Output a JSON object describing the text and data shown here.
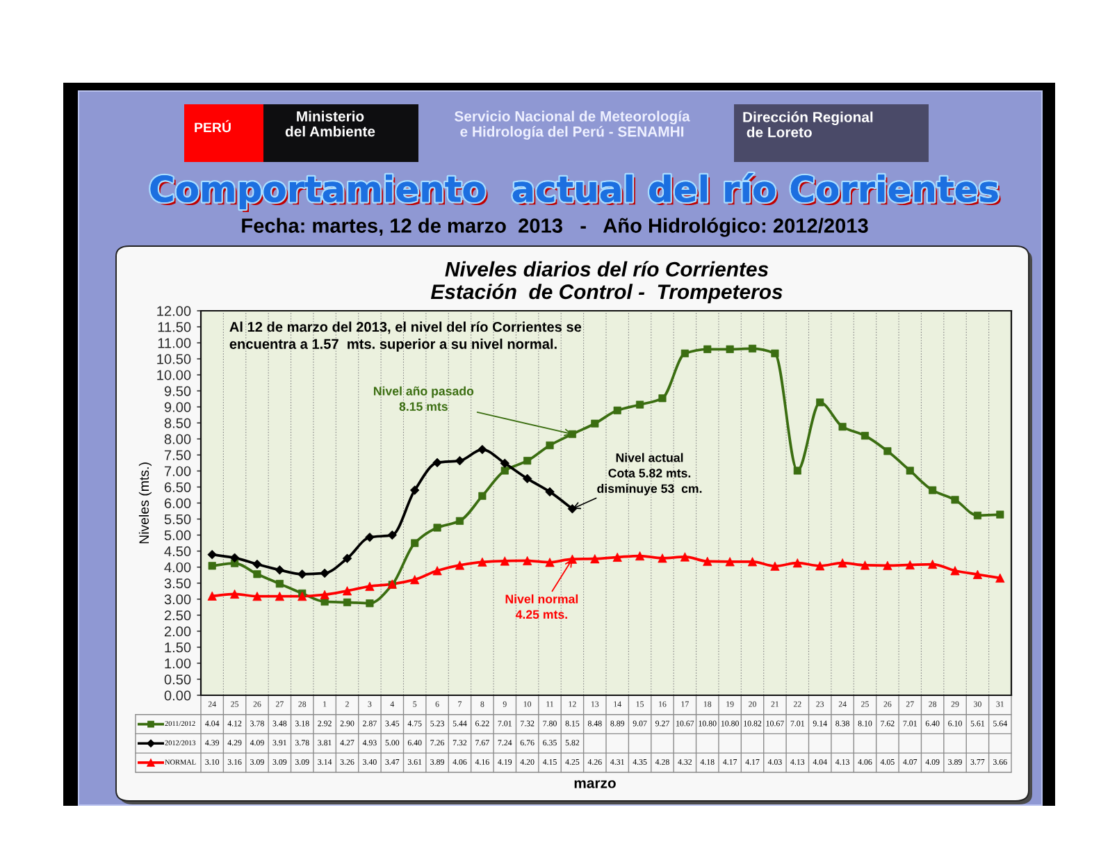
{
  "chart_data": {
    "type": "line",
    "title": "Comportamiento  actual del río Corrientes",
    "subtitle": "Fecha: martes, 12 de marzo  2013   -   Año Hidrológico: 2012/2013",
    "ylabel": "Niveles (mts.)",
    "categories": [
      "24",
      "25",
      "26",
      "27",
      "28",
      "1",
      "2",
      "3",
      "4",
      "5",
      "6",
      "7",
      "8",
      "9",
      "10",
      "11",
      "12",
      "13",
      "14",
      "15",
      "16",
      "17",
      "18",
      "19",
      "20",
      "21",
      "22",
      "23",
      "24",
      "25",
      "26",
      "27",
      "28",
      "29",
      "30",
      "31"
    ],
    "series": [
      {
        "name": "2011/2012",
        "color": "#3b6e11",
        "marker": "square",
        "values": [
          4.04,
          4.12,
          3.78,
          3.48,
          3.18,
          2.92,
          2.9,
          2.87,
          3.45,
          4.75,
          5.23,
          5.44,
          6.22,
          7.01,
          7.32,
          7.8,
          8.15,
          8.48,
          8.89,
          9.07,
          9.27,
          10.67,
          10.8,
          10.8,
          10.82,
          10.67,
          7.01,
          9.14,
          8.38,
          8.1,
          7.62,
          7.01,
          6.4,
          6.1,
          5.61,
          5.64
        ],
        "value_labels": [
          "4.04",
          "4.12",
          "3.78",
          "3.48",
          "3.18",
          "2.92",
          "2.90",
          "2.87",
          "3.45",
          "4.75",
          "5.23",
          "5.44",
          "6.22",
          "7.01",
          "7.32",
          "7.80",
          "8.15",
          "8.48",
          "8.89",
          "9.07",
          "9.27",
          "10.67",
          "10.80",
          "10.80",
          "10.82",
          "10.67",
          "7.01",
          "9.14",
          "8.38",
          "8.10",
          "7.62",
          "7.01",
          "6.40",
          "6.10",
          "5.61",
          "5.64"
        ]
      },
      {
        "name": "2012/2013",
        "color": "#000000",
        "marker": "diamond",
        "values": [
          4.39,
          4.29,
          4.09,
          3.91,
          3.78,
          3.81,
          4.27,
          4.93,
          5.0,
          6.4,
          7.26,
          7.32,
          7.67,
          7.24,
          6.76,
          6.35,
          5.82,
          null,
          null,
          null,
          null,
          null,
          null,
          null,
          null,
          null,
          null,
          null,
          null,
          null,
          null,
          null,
          null,
          null,
          null,
          null
        ],
        "value_labels": [
          "4.39",
          "4.29",
          "4.09",
          "3.91",
          "3.78",
          "3.81",
          "4.27",
          "4.93",
          "5.00",
          "6.40",
          "7.26",
          "7.32",
          "7.67",
          "7.24",
          "6.76",
          "6.35",
          "5.82",
          null,
          null,
          null,
          null,
          null,
          null,
          null,
          null,
          null,
          null,
          null,
          null,
          null,
          null,
          null,
          null,
          null,
          null,
          null
        ]
      },
      {
        "name": "NORMAL",
        "color": "#ff0000",
        "marker": "triangle",
        "values": [
          3.1,
          3.16,
          3.09,
          3.09,
          3.09,
          3.14,
          3.26,
          3.4,
          3.47,
          3.61,
          3.89,
          4.06,
          4.16,
          4.19,
          4.2,
          4.15,
          4.25,
          4.26,
          4.31,
          4.35,
          4.28,
          4.32,
          4.18,
          4.17,
          4.17,
          4.03,
          4.13,
          4.04,
          4.13,
          4.06,
          4.05,
          4.07,
          4.09,
          3.89,
          3.77,
          3.66
        ],
        "value_labels": [
          "3.10",
          "3.16",
          "3.09",
          "3.09",
          "3.09",
          "3.14",
          "3.26",
          "3.40",
          "3.47",
          "3.61",
          "3.89",
          "4.06",
          "4.16",
          "4.19",
          "4.20",
          "4.15",
          "4.25",
          "4.26",
          "4.31",
          "4.35",
          "4.28",
          "4.32",
          "4.18",
          "4.17",
          "4.17",
          "4.03",
          "4.13",
          "4.04",
          "4.13",
          "4.06",
          "4.05",
          "4.07",
          "4.09",
          "3.89",
          "3.77",
          "3.66"
        ]
      }
    ],
    "ylim": [
      0,
      12
    ],
    "yticks": [
      {
        "value": 0,
        "label": "0.00"
      },
      {
        "value": 0.5,
        "label": "0.50"
      },
      {
        "value": 1,
        "label": "1.00"
      },
      {
        "value": 1.5,
        "label": "1.50"
      },
      {
        "value": 2,
        "label": "2.00"
      },
      {
        "value": 2.5,
        "label": "2.50"
      },
      {
        "value": 3,
        "label": "3.00"
      },
      {
        "value": 3.5,
        "label": "3.50"
      },
      {
        "value": 4,
        "label": "4.00"
      },
      {
        "value": 4.5,
        "label": "4.50"
      },
      {
        "value": 5,
        "label": "5.00"
      },
      {
        "value": 5.5,
        "label": "5.50"
      },
      {
        "value": 6,
        "label": "6.00"
      },
      {
        "value": 6.5,
        "label": "6.50"
      },
      {
        "value": 7,
        "label": "7.00"
      },
      {
        "value": 7.5,
        "label": "7.50"
      },
      {
        "value": 8,
        "label": "8.00"
      },
      {
        "value": 8.5,
        "label": "8.50"
      },
      {
        "value": 9,
        "label": "9.00"
      },
      {
        "value": 9.5,
        "label": "9.50"
      },
      {
        "value": 10,
        "label": "10.00"
      },
      {
        "value": 10.5,
        "label": "10.50"
      },
      {
        "value": 11,
        "label": "11.00"
      },
      {
        "value": 11.5,
        "label": "11.50"
      },
      {
        "value": 12,
        "label": "12.00"
      }
    ],
    "grid": "x",
    "legend": "bottom",
    "annotations": [
      "PERÚ",
      "Ministerio\ndel Ambiente",
      "Servicio Nacional de Meteorología\ne Hidrología del Perú - SENAMHI",
      "Dirección Regional\n de Loreto",
      "Niveles diarios del río Corrientes\nEstación  de Control -  Trompeteros",
      "Al 12 de marzo del 2013, el nivel del río Corrientes se\nencuentra a 1.57  mts. superior a su nivel normal.",
      "marzo",
      {
        "text": "Nivel año pasado\n8.15 mts",
        "x": "12",
        "y": 8.15
      },
      {
        "text": "Nivel actual\nCota 5.82 mts.\ndisminuye 53  cm.",
        "x": "12",
        "y": 5.82
      },
      {
        "text": "Nivel normal\n4.25 mts.",
        "x": "12",
        "y": 4.25
      }
    ]
  }
}
